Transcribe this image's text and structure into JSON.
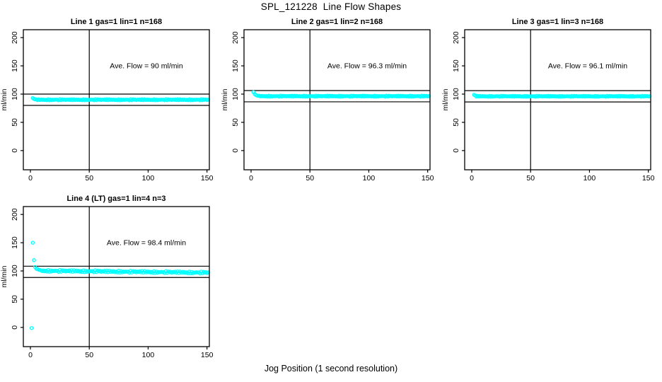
{
  "figure": {
    "title": "SPL_121228  Line Flow Shapes",
    "x_axis_label": "Jog Position (1 second resolution)",
    "background_color": "#ffffff",
    "text_color": "#000000"
  },
  "chart_data": {
    "type": "scatter",
    "point_color": "#00ffff",
    "line_color": "#000000",
    "axes": {
      "x_ticks": [
        0,
        50,
        100,
        150
      ],
      "y_ticks": [
        0,
        50,
        100,
        150,
        200
      ],
      "x_range": [
        -6,
        152
      ],
      "y_range": [
        -34,
        214
      ],
      "grid": false
    },
    "noise_pattern": [
      0.4,
      -0.7,
      1.0,
      -0.2,
      0.6,
      -1.0,
      0.15,
      -0.5,
      0.85,
      -0.9,
      0.3,
      -0.15,
      0.95,
      -0.6,
      0.1,
      -0.8,
      0.7,
      -0.35,
      0.5,
      -1.0,
      0.25,
      -0.45,
      0.9,
      -0.05,
      0.55,
      -0.75,
      0.05,
      -0.25,
      0.8,
      -0.55
    ],
    "panels": [
      {
        "title": "Line 1 gas=1 lin=1 n=168",
        "annotation": "Ave. Flow =  90  ml/min",
        "ave_flow": 90,
        "n_points": 168,
        "y_axis_label": "ml/min",
        "hlines": [
          100,
          80
        ],
        "vline": 50,
        "steady": 90,
        "noise_amp": 0.9,
        "drift_per_x": 0,
        "transient": [
          [
            2,
            93
          ],
          [
            3,
            91.5
          ],
          [
            4,
            90.6
          ]
        ],
        "outliers": [],
        "x_start": 2,
        "x_end": 151,
        "x_step": 1
      },
      {
        "title": "Line 2 gas=1 lin=2 n=168",
        "annotation": "Ave. Flow =  96.3  ml/min",
        "ave_flow": 96.3,
        "n_points": 168,
        "y_axis_label": "ml/min",
        "hlines": [
          106.3,
          86.3
        ],
        "vline": 50,
        "steady": 96.3,
        "noise_amp": 0.9,
        "drift_per_x": 0,
        "transient": [
          [
            2,
            103.5
          ],
          [
            3,
            100.2
          ],
          [
            4,
            98.6
          ],
          [
            5,
            97.5
          ],
          [
            6,
            97.0
          ]
        ],
        "outliers": [],
        "x_start": 2,
        "x_end": 151,
        "x_step": 1
      },
      {
        "title": "Line 3 gas=1 lin=3 n=168",
        "annotation": "Ave. Flow =  96.1  ml/min",
        "ave_flow": 96.1,
        "n_points": 168,
        "y_axis_label": "ml/min",
        "hlines": [
          106.1,
          86.1
        ],
        "vline": 50,
        "steady": 96.1,
        "noise_amp": 0.8,
        "drift_per_x": 0,
        "transient": [
          [
            2,
            98.8
          ],
          [
            3,
            97.6
          ]
        ],
        "outliers": [],
        "x_start": 2,
        "x_end": 151,
        "x_step": 1
      },
      {
        "title": "Line 4 (LT) gas=1 lin=4 n=3",
        "annotation": "Ave. Flow =  98.4  ml/min",
        "ave_flow": 98.4,
        "n_points": 3,
        "y_axis_label": "ml/min",
        "hlines": [
          108.4,
          88.4
        ],
        "vline": 50,
        "steady": 100.5,
        "noise_amp": 1.6,
        "drift_per_x": -0.024,
        "transient": [
          [
            5,
            104
          ],
          [
            6,
            103.2
          ],
          [
            7,
            102.3
          ],
          [
            8,
            101.6
          ],
          [
            9,
            101
          ]
        ],
        "outliers": [
          [
            1,
            -1
          ],
          [
            2,
            150
          ],
          [
            3,
            119
          ],
          [
            4,
            107
          ]
        ],
        "x_start": 5,
        "x_end": 151,
        "x_step": 1
      }
    ]
  }
}
